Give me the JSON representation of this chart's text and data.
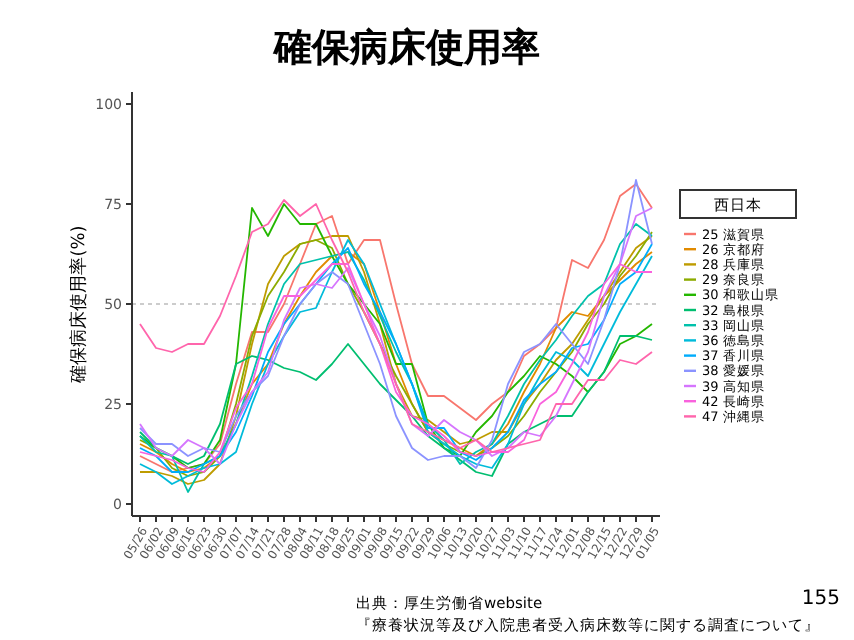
{
  "chart_data": {
    "type": "line",
    "title": "確保病床使用率",
    "ylabel": "確保病床使用率(%)",
    "legend_title": "西日本",
    "legend": "right",
    "categories": [
      "05/26",
      "06/02",
      "06/09",
      "06/16",
      "06/23",
      "06/30",
      "07/07",
      "07/14",
      "07/21",
      "07/28",
      "08/04",
      "08/11",
      "08/18",
      "08/25",
      "09/01",
      "09/08",
      "09/15",
      "09/22",
      "09/29",
      "10/06",
      "10/13",
      "10/20",
      "10/27",
      "11/03",
      "11/10",
      "11/17",
      "11/24",
      "12/01",
      "12/08",
      "12/15",
      "12/22",
      "12/29",
      "01/05"
    ],
    "series": [
      {
        "name": "25 滋賀県",
        "color": "#F8766D",
        "values": [
          12,
          10,
          8,
          9,
          10,
          15,
          30,
          43,
          43,
          50,
          60,
          70,
          72,
          60,
          66,
          66,
          50,
          35,
          27,
          27,
          24,
          21,
          25,
          28,
          37,
          40,
          44,
          61,
          59,
          66,
          77,
          80,
          74
        ]
      },
      {
        "name": "26 京都府",
        "color": "#E18A00",
        "values": [
          15,
          13,
          10,
          8,
          9,
          12,
          20,
          30,
          35,
          45,
          52,
          58,
          62,
          63,
          60,
          48,
          35,
          25,
          18,
          16,
          14,
          12,
          15,
          20,
          28,
          35,
          44,
          48,
          47,
          52,
          56,
          60,
          63
        ]
      },
      {
        "name": "28 兵庫県",
        "color": "#BE9C00",
        "values": [
          8,
          8,
          7,
          5,
          6,
          10,
          22,
          40,
          55,
          62,
          65,
          66,
          67,
          67,
          58,
          45,
          30,
          22,
          21,
          18,
          15,
          16,
          18,
          18,
          25,
          30,
          36,
          40,
          46,
          52,
          58,
          64,
          67
        ]
      },
      {
        "name": "29 奈良県",
        "color": "#8CAB00",
        "values": [
          16,
          14,
          9,
          7,
          8,
          12,
          25,
          42,
          52,
          58,
          65,
          66,
          64,
          55,
          48,
          40,
          32,
          25,
          18,
          15,
          13,
          12,
          14,
          17,
          22,
          28,
          33,
          38,
          45,
          50,
          57,
          62,
          68
        ]
      },
      {
        "name": "30 和歌山県",
        "color": "#24B700",
        "values": [
          17,
          14,
          12,
          9,
          10,
          16,
          35,
          74,
          67,
          75,
          70,
          70,
          62,
          55,
          50,
          45,
          35,
          35,
          20,
          14,
          12,
          18,
          22,
          28,
          32,
          37,
          35,
          32,
          28,
          33,
          40,
          42,
          45
        ]
      },
      {
        "name": "32 島根県",
        "color": "#00BE70",
        "values": [
          18,
          14,
          12,
          10,
          12,
          20,
          35,
          37,
          36,
          34,
          33,
          31,
          35,
          40,
          35,
          30,
          26,
          22,
          17,
          14,
          11,
          8,
          7,
          15,
          18,
          20,
          22,
          22,
          28,
          33,
          42,
          42,
          41
        ]
      },
      {
        "name": "33 岡山県",
        "color": "#00C1AB",
        "values": [
          17,
          13,
          12,
          3,
          10,
          12,
          20,
          32,
          45,
          55,
          60,
          61,
          62,
          63,
          56,
          47,
          38,
          30,
          20,
          16,
          10,
          13,
          15,
          22,
          30,
          36,
          41,
          47,
          52,
          55,
          65,
          70,
          67
        ]
      },
      {
        "name": "36 徳島県",
        "color": "#00BBDA",
        "values": [
          10,
          8,
          5,
          7,
          9,
          10,
          13,
          25,
          35,
          42,
          48,
          49,
          58,
          66,
          60,
          50,
          40,
          30,
          18,
          15,
          12,
          10,
          9,
          15,
          25,
          32,
          38,
          36,
          32,
          40,
          48,
          55,
          62
        ]
      },
      {
        "name": "37 香川県",
        "color": "#00ACFC",
        "values": [
          14,
          12,
          8,
          8,
          10,
          12,
          18,
          27,
          38,
          45,
          50,
          55,
          60,
          64,
          55,
          48,
          40,
          30,
          19,
          19,
          13,
          11,
          14,
          18,
          26,
          30,
          33,
          39,
          40,
          46,
          55,
          58,
          65
        ]
      },
      {
        "name": "38 愛媛県",
        "color": "#8B93FF",
        "values": [
          19,
          15,
          15,
          12,
          14,
          13,
          22,
          28,
          32,
          42,
          50,
          55,
          58,
          55,
          45,
          35,
          22,
          14,
          11,
          12,
          12,
          9,
          16,
          30,
          38,
          40,
          45,
          40,
          35,
          46,
          60,
          81,
          65
        ]
      },
      {
        "name": "39 高知県",
        "color": "#D575FE",
        "values": [
          20,
          14,
          12,
          16,
          14,
          10,
          20,
          28,
          33,
          46,
          54,
          55,
          54,
          59,
          50,
          42,
          30,
          20,
          17,
          21,
          18,
          16,
          12,
          14,
          18,
          17,
          22,
          30,
          38,
          52,
          60,
          72,
          74
        ]
      },
      {
        "name": "42 長崎県",
        "color": "#F962DD",
        "values": [
          13,
          12,
          11,
          9,
          8,
          13,
          24,
          30,
          44,
          52,
          52,
          56,
          60,
          60,
          50,
          40,
          28,
          22,
          20,
          17,
          13,
          12,
          13,
          13,
          16,
          25,
          28,
          35,
          43,
          55,
          60,
          58,
          58
        ]
      },
      {
        "name": "47 沖縄県",
        "color": "#FF65AC",
        "values": [
          45,
          39,
          38,
          40,
          40,
          47,
          57,
          68,
          70,
          76,
          72,
          75,
          66,
          58,
          48,
          40,
          30,
          20,
          18,
          16,
          14,
          16,
          13,
          14,
          15,
          16,
          25,
          25,
          31,
          31,
          36,
          35,
          38
        ]
      }
    ],
    "ylim": [
      -3,
      103
    ],
    "yticks": [
      0,
      25,
      50,
      75,
      100
    ],
    "grid": false,
    "ref_lines": [
      {
        "axis": "y",
        "value": 50,
        "line_style": "dotted",
        "color": "#cccccc"
      }
    ],
    "annotations": [
      "出典：厚生労働省website",
      "『療養状況等及び入院患者受入病床数等に関する調査について』",
      "155"
    ]
  }
}
